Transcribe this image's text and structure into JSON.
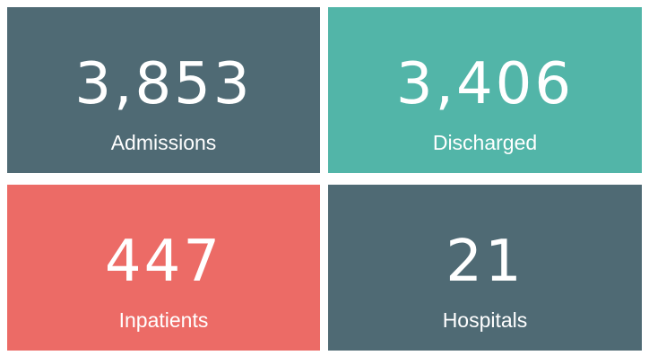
{
  "cards": [
    {
      "value": "3,853",
      "label": "Admissions",
      "color": "#4f6a74"
    },
    {
      "value": "3,406",
      "label": "Discharged",
      "color": "#52b5a8"
    },
    {
      "value": "447",
      "label": "Inpatients",
      "color": "#ec6b66"
    },
    {
      "value": "21",
      "label": "Hospitals",
      "color": "#4f6a74"
    }
  ]
}
